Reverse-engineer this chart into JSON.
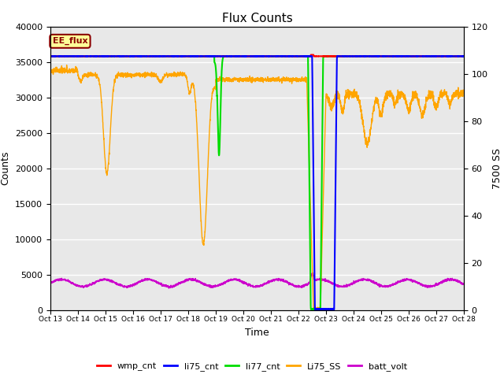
{
  "title": "Flux Counts",
  "xlabel": "Time",
  "ylabel_left": "Counts",
  "ylabel_right": "7500 SS",
  "ylim_left": [
    0,
    40000
  ],
  "ylim_right": [
    0,
    120
  ],
  "background_color": "#e8e8e8",
  "annotation_text": "EE_flux",
  "annotation_color": "#8b0000",
  "annotation_bg": "#ffff99",
  "xtick_labels": [
    "Oct 13",
    "Oct 14",
    "Oct 15",
    "Oct 16",
    "Oct 17",
    "Oct 18",
    "Oct 19",
    "Oct 20",
    "Oct 21",
    "Oct 22",
    "Oct 23",
    "Oct 24",
    "Oct 25",
    "Oct 26",
    "Oct 27",
    "Oct 28"
  ],
  "series": {
    "wmp_cnt": {
      "color": "#ff0000",
      "lw": 1.5
    },
    "li75_cnt": {
      "color": "#0000ff",
      "lw": 1.5
    },
    "li77_cnt": {
      "color": "#00dd00",
      "lw": 1.5
    },
    "Li75_SS": {
      "color": "#ffa500",
      "lw": 1.0
    },
    "batt_volt": {
      "color": "#cc00cc",
      "lw": 1.0
    }
  },
  "grid_color": "#ffffff",
  "title_fontsize": 11
}
